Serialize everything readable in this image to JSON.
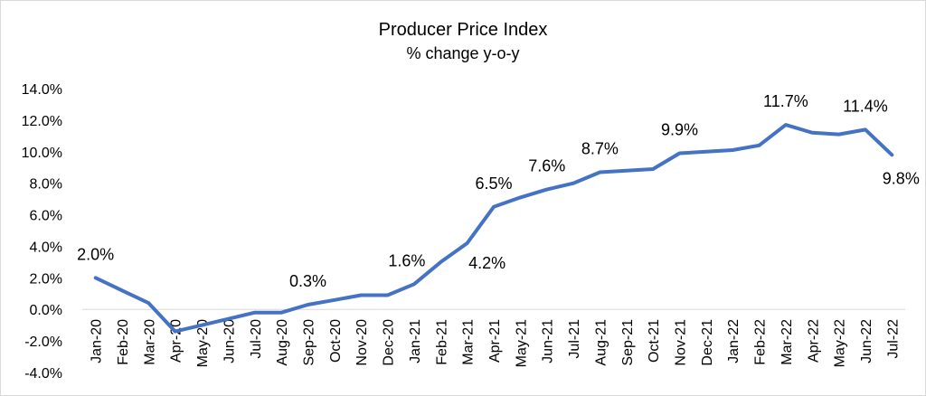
{
  "chart_data": {
    "type": "line",
    "title": "Producer Price Index",
    "subtitle": "% change y-o-y",
    "ylim": [
      -4.0,
      14.0
    ],
    "yticks": [
      "14.0%",
      "12.0%",
      "10.0%",
      "8.0%",
      "6.0%",
      "4.0%",
      "2.0%",
      "0.0%",
      "-2.0%",
      "-4.0%"
    ],
    "grid": false,
    "legend": "none",
    "line_color": "#4472c4",
    "categories": [
      "Jan-20",
      "Feb-20",
      "Mar-20",
      "Apr-20",
      "May-20",
      "Jun-20",
      "Jul-20",
      "Aug-20",
      "Sep-20",
      "Oct-20",
      "Nov-20",
      "Dec-20",
      "Jan-21",
      "Feb-21",
      "Mar-21",
      "Apr-21",
      "May-21",
      "Jun-21",
      "Jul-21",
      "Aug-21",
      "Sep-21",
      "Oct-21",
      "Nov-21",
      "Dec-21",
      "Jan-22",
      "Feb-22",
      "Mar-22",
      "Apr-22",
      "May-22",
      "Jun-22",
      "Jul-22"
    ],
    "values": [
      2.0,
      1.2,
      0.4,
      -1.4,
      -1.0,
      -0.6,
      -0.2,
      -0.2,
      0.3,
      0.6,
      0.9,
      0.9,
      1.6,
      3.0,
      4.2,
      6.5,
      7.1,
      7.6,
      8.0,
      8.7,
      8.8,
      8.9,
      9.9,
      10.0,
      10.1,
      10.4,
      11.7,
      11.2,
      11.1,
      11.4,
      9.8
    ],
    "data_labels": [
      {
        "index": 0,
        "text": "2.0%"
      },
      {
        "index": 8,
        "text": "0.3%"
      },
      {
        "index": 12,
        "text": "1.6%"
      },
      {
        "index": 14,
        "text": "4.2%"
      },
      {
        "index": 15,
        "text": "6.5%"
      },
      {
        "index": 17,
        "text": "7.6%"
      },
      {
        "index": 19,
        "text": "8.7%"
      },
      {
        "index": 22,
        "text": "9.9%"
      },
      {
        "index": 26,
        "text": "11.7%"
      },
      {
        "index": 29,
        "text": "11.4%"
      },
      {
        "index": 30,
        "text": "9.8%"
      }
    ]
  }
}
